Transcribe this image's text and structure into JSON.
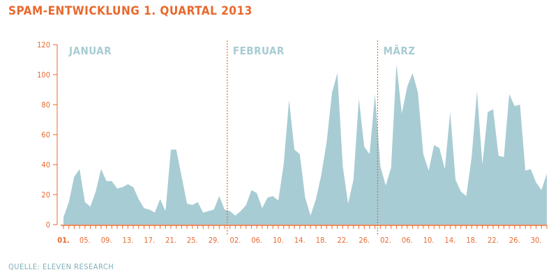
{
  "title": "SPAM-ENTWICKLUNG 1. QUARTAL 2013",
  "source": "QUELLE: ELEVEN RESEARCH",
  "colors": {
    "accent": "#e8692d",
    "area": "#a8ccd3",
    "month_label": "#a8ccd3"
  },
  "chart_data": {
    "type": "area",
    "title": "SPAM-ENTWICKLUNG 1. QUARTAL 2013",
    "xlabel": "",
    "ylabel": "",
    "ylim": [
      0,
      120
    ],
    "yticks": [
      0,
      20,
      40,
      60,
      80,
      100,
      120
    ],
    "grid": false,
    "months": [
      {
        "label": "JANUAR",
        "start_day": 1
      },
      {
        "label": "FEBRUAR",
        "start_day": 32
      },
      {
        "label": "MÄRZ",
        "start_day": 60
      }
    ],
    "xticks": [
      {
        "day": 1,
        "label": "01."
      },
      {
        "day": 5,
        "label": "05."
      },
      {
        "day": 9,
        "label": "09."
      },
      {
        "day": 13,
        "label": "13."
      },
      {
        "day": 17,
        "label": "17."
      },
      {
        "day": 21,
        "label": "21."
      },
      {
        "day": 25,
        "label": "25."
      },
      {
        "day": 29,
        "label": "29."
      },
      {
        "day": 33,
        "label": "02."
      },
      {
        "day": 37,
        "label": "06."
      },
      {
        "day": 41,
        "label": "10."
      },
      {
        "day": 45,
        "label": "14."
      },
      {
        "day": 49,
        "label": "18."
      },
      {
        "day": 53,
        "label": "22."
      },
      {
        "day": 57,
        "label": "26."
      },
      {
        "day": 61,
        "label": "02."
      },
      {
        "day": 65,
        "label": "06."
      },
      {
        "day": 69,
        "label": "10."
      },
      {
        "day": 73,
        "label": "14."
      },
      {
        "day": 77,
        "label": "18."
      },
      {
        "day": 81,
        "label": "22."
      },
      {
        "day": 85,
        "label": "26."
      },
      {
        "day": 89,
        "label": "30."
      }
    ],
    "series": [
      {
        "values": [
          5,
          15,
          32,
          37,
          15,
          12,
          22,
          37,
          29,
          29,
          24,
          25,
          27,
          25,
          17,
          11,
          10,
          8,
          17,
          9,
          50,
          50,
          32,
          14,
          13,
          15,
          8,
          9,
          10,
          19,
          10,
          9,
          6,
          9,
          13,
          23,
          21,
          11,
          18,
          19,
          16,
          40,
          83,
          50,
          47,
          18,
          6,
          17,
          33,
          55,
          88,
          101,
          39,
          14,
          30,
          84,
          52,
          47,
          87,
          39,
          26,
          38,
          107,
          74,
          92,
          101,
          88,
          47,
          36,
          53,
          51,
          37,
          75,
          30,
          22,
          19,
          45,
          89,
          40,
          75,
          77,
          46,
          45,
          87,
          79,
          80,
          36,
          37,
          28,
          23,
          34
        ]
      }
    ]
  }
}
